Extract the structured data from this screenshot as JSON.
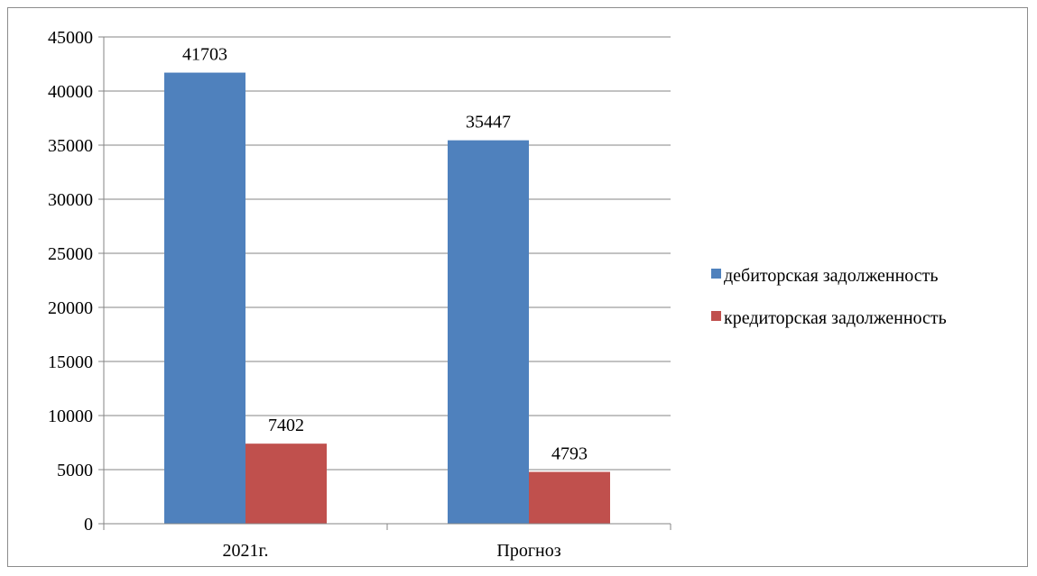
{
  "chart_data": {
    "type": "bar",
    "categories": [
      "2021г.",
      "Прогноз"
    ],
    "series": [
      {
        "name": "дебиторская задолженность",
        "values": [
          41703,
          35447
        ],
        "color": "#4f81bd"
      },
      {
        "name": "кредиторская задолженность",
        "values": [
          7402,
          4793
        ],
        "color": "#c0504d"
      }
    ],
    "title": "",
    "xlabel": "",
    "ylabel": "",
    "ylim": [
      0,
      45000
    ],
    "yticks": [
      0,
      5000,
      10000,
      15000,
      20000,
      25000,
      30000,
      35000,
      40000,
      45000
    ],
    "grid": true,
    "legend": "right",
    "data_labels": true,
    "colors": {
      "gridline": "#868686",
      "axis": "#868686",
      "frame": "#8c8c8c"
    }
  }
}
